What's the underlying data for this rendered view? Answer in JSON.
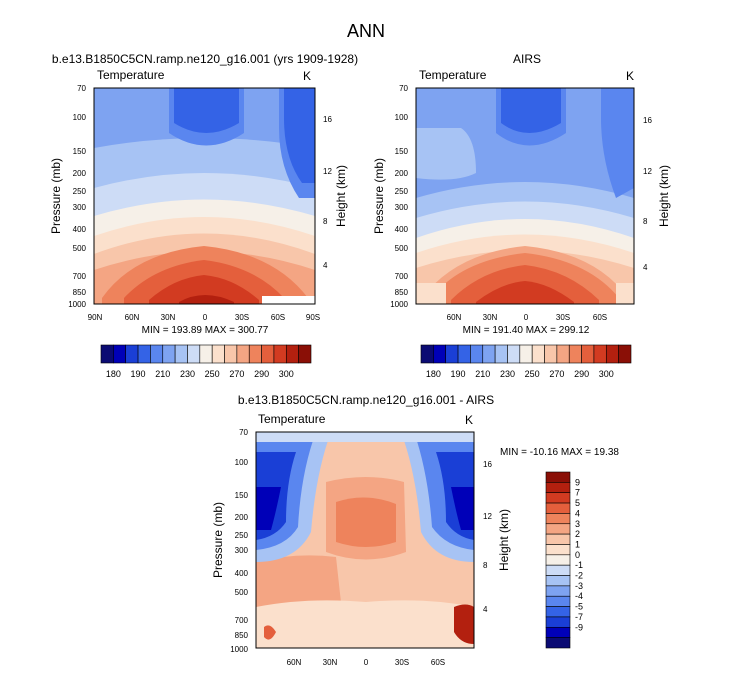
{
  "page": {
    "title": "ANN"
  },
  "colors": {
    "levels_abs": [
      "#0b0b73",
      "#0000b8",
      "#1a3fd6",
      "#3463e6",
      "#5a86ef",
      "#7ea3f1",
      "#a7c3f4",
      "#cddcf6",
      "#f6f0e8",
      "#fbe0cc",
      "#f8c6aa",
      "#f4a583",
      "#ee835c",
      "#e45f3c",
      "#d23b21",
      "#b3200f",
      "#8a0f06"
    ],
    "levels_diff": [
      "#0b0b73",
      "#0000b8",
      "#1a3fd6",
      "#3463e6",
      "#5a86ef",
      "#7ea3f1",
      "#a7c3f4",
      "#cddcf6",
      "#f6f0e8",
      "#fbe0cc",
      "#f8c6aa",
      "#f4a583",
      "#ee835c",
      "#e45f3c",
      "#d23b21",
      "#b3200f",
      "#8a0f06"
    ]
  },
  "panels": [
    {
      "subtitle": "b.e13.B1850C5CN.ramp.ne120_g16.001 (yrs 1909-1928)",
      "variable": "Temperature",
      "units": "K",
      "ylabel": "Pressure (mb)",
      "ylabel2": "Height (km)",
      "stats": "MIN = 193.89  MAX = 300.77",
      "p_ticks": [
        "70",
        "100",
        "150",
        "200",
        "250",
        "300",
        "400",
        "500",
        "700",
        "850",
        "1000"
      ],
      "h_ticks": [
        "16",
        "12",
        "8",
        "4"
      ],
      "x_ticks": [
        "90N",
        "60N",
        "30N",
        "0",
        "30S",
        "60S",
        "90S"
      ]
    },
    {
      "subtitle": "AIRS",
      "variable": "Temperature",
      "units": "K",
      "ylabel": "Pressure (mb)",
      "ylabel2": "Height (km)",
      "stats": "MIN = 191.40   MAX = 299.12",
      "p_ticks": [
        "70",
        "100",
        "150",
        "200",
        "250",
        "300",
        "400",
        "500",
        "700",
        "850",
        "1000"
      ],
      "h_ticks": [
        "16",
        "12",
        "8",
        "4"
      ],
      "x_ticks": [
        "60N",
        "30N",
        "0",
        "30S",
        "60S"
      ]
    },
    {
      "subtitle": "b.e13.B1850C5CN.ramp.ne120_g16.001 - AIRS",
      "variable": "Temperature",
      "units": "K",
      "ylabel": "Pressure (mb)",
      "ylabel2": "Height (km)",
      "stats": "MIN = -10.16  MAX =  19.38",
      "p_ticks": [
        "70",
        "100",
        "150",
        "200",
        "250",
        "300",
        "400",
        "500",
        "700",
        "850",
        "1000"
      ],
      "h_ticks": [
        "16",
        "12",
        "8",
        "4"
      ],
      "x_ticks": [
        "60N",
        "30N",
        "0",
        "30S",
        "60S"
      ]
    }
  ],
  "colorbar_abs": {
    "labels": [
      "180",
      "190",
      "210",
      "230",
      "250",
      "270",
      "290",
      "300"
    ]
  },
  "colorbar_diff": {
    "labels": [
      "9",
      "7",
      "5",
      "4",
      "3",
      "2",
      "1",
      "0",
      "-1",
      "-2",
      "-3",
      "-4",
      "-5",
      "-7",
      "-9"
    ]
  },
  "chart_data": [
    {
      "type": "heatmap",
      "title": "b.e13.B1850C5CN.ramp.ne120_g16.001 (yrs 1909-1928)",
      "variable": "Temperature",
      "units": "K",
      "xlabel": "",
      "ylabel": "Pressure (mb)",
      "ylabel_right": "Height (km)",
      "x_range": [
        "90N",
        "90S"
      ],
      "y_range_mb": [
        70,
        1000
      ],
      "y_scale": "log",
      "grid": false,
      "min": 193.89,
      "max": 300.77
    },
    {
      "type": "heatmap",
      "title": "AIRS",
      "variable": "Temperature",
      "units": "K",
      "xlabel": "",
      "ylabel": "Pressure (mb)",
      "ylabel_right": "Height (km)",
      "y_range_mb": [
        70,
        1000
      ],
      "y_scale": "log",
      "grid": false,
      "min": 191.4,
      "max": 299.12
    },
    {
      "type": "heatmap",
      "title": "b.e13.B1850C5CN.ramp.ne120_g16.001 - AIRS",
      "variable": "Temperature",
      "units": "K",
      "xlabel": "",
      "ylabel": "Pressure (mb)",
      "ylabel_right": "Height (km)",
      "y_range_mb": [
        70,
        1000
      ],
      "y_scale": "log",
      "grid": false,
      "min": -10.16,
      "max": 19.38
    }
  ]
}
